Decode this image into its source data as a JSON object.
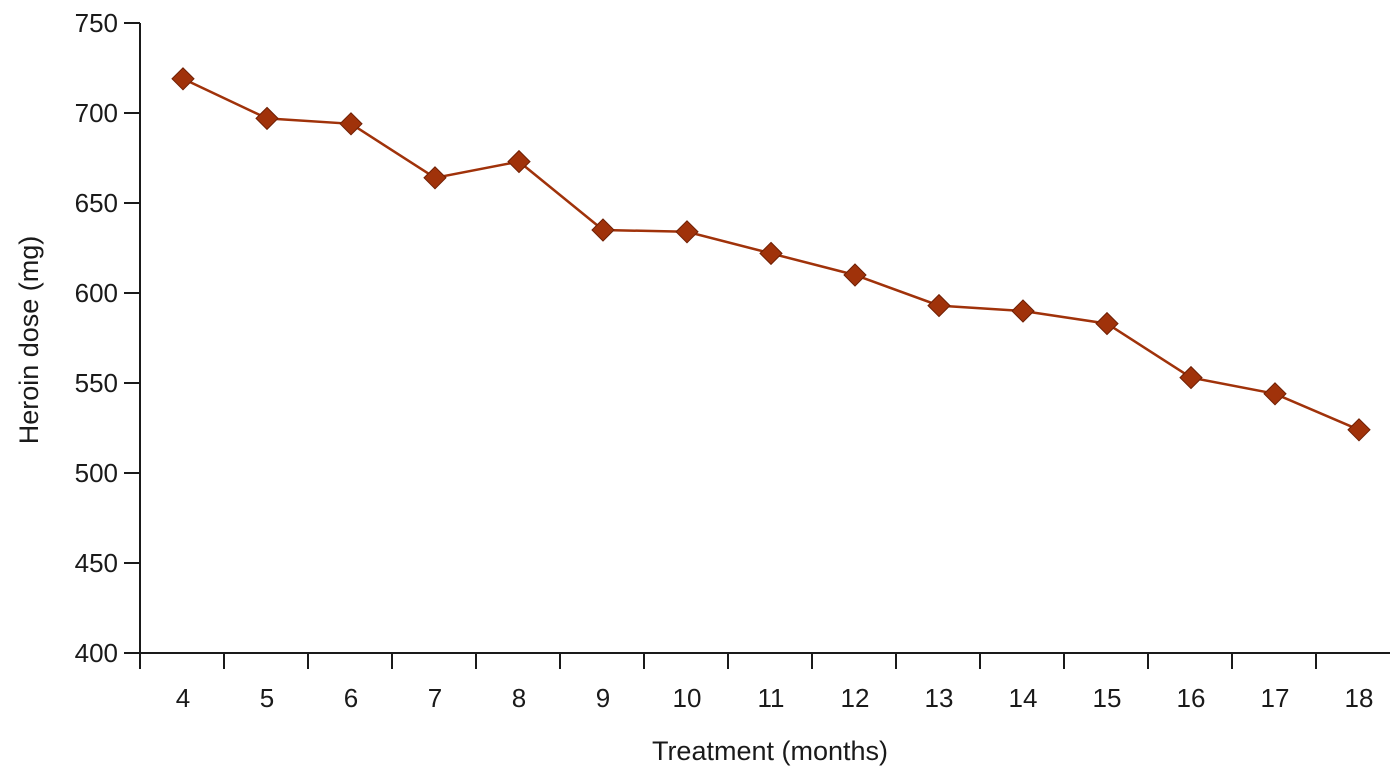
{
  "chart_data": {
    "type": "line",
    "title": "",
    "xlabel": "Treatment (months)",
    "ylabel": "Heroin dose (mg)",
    "x": [
      4,
      5,
      6,
      7,
      8,
      9,
      10,
      11,
      12,
      13,
      14,
      15,
      16,
      17,
      18
    ],
    "series": [
      {
        "values": [
          719,
          697,
          694,
          664,
          673,
          635,
          634,
          622,
          610,
          593,
          590,
          583,
          553,
          544,
          524
        ],
        "color": "#a0320a",
        "marker": "diamond"
      }
    ],
    "ylim": [
      400,
      750
    ],
    "yticks": [
      400,
      450,
      500,
      550,
      600,
      650,
      700,
      750
    ],
    "grid": false,
    "legend": "none"
  }
}
